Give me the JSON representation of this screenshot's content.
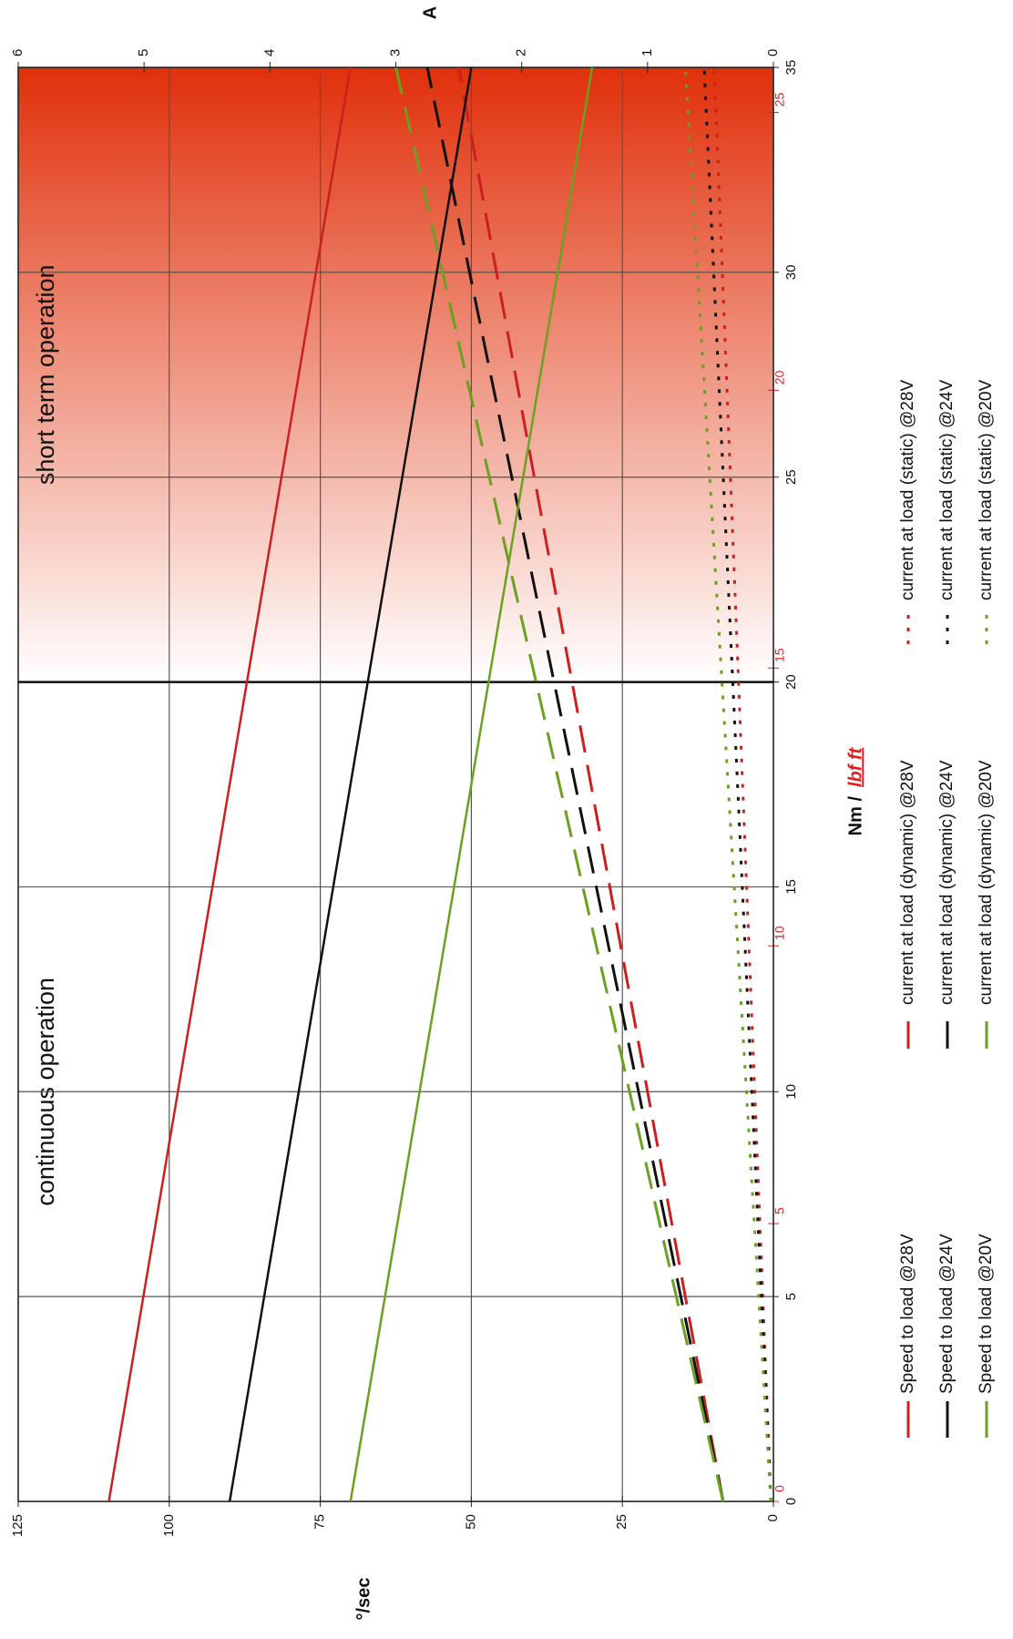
{
  "chart_data": {
    "type": "line",
    "x_label": "Nm /",
    "x2_label": "lbf ft",
    "y_label": "°/sec",
    "y2_label": "A",
    "x": [
      0,
      35
    ],
    "series": [
      {
        "name": "Speed to load @28V",
        "color": "#cc1f1f",
        "style": "solid",
        "values": [
          110,
          70
        ]
      },
      {
        "name": "current at load (dynamic) @28V",
        "color": "#cc1f1f",
        "style": "dashed",
        "axis": "y2",
        "values": [
          0.4,
          2.5
        ]
      },
      {
        "name": "current at load (static) @28V",
        "color": "#cc1f1f",
        "style": "dotted",
        "axis": "y2",
        "values": [
          0.02,
          0.47
        ]
      },
      {
        "name": "Speed to load @24V",
        "color": "#111111",
        "style": "solid",
        "values": [
          90,
          50
        ]
      },
      {
        "name": "current at load (dynamic) @24V",
        "color": "#111111",
        "style": "dashed",
        "axis": "y2",
        "values": [
          0.4,
          2.75
        ]
      },
      {
        "name": "current at load (static) @24V",
        "color": "#111111",
        "style": "dotted",
        "axis": "y2",
        "values": [
          0.02,
          0.55
        ]
      },
      {
        "name": "Speed to load @20V",
        "color": "#6aa121",
        "style": "solid",
        "values": [
          70,
          30
        ]
      },
      {
        "name": "current at load (dynamic) @20V",
        "color": "#6aa121",
        "style": "dashed",
        "axis": "y2",
        "values": [
          0.4,
          3.0
        ]
      },
      {
        "name": "current at load (static) @20V",
        "color": "#6aa121",
        "style": "dotted",
        "axis": "y2",
        "values": [
          0.02,
          0.7
        ]
      }
    ],
    "xlim": [
      0,
      35
    ],
    "xticks": [
      0,
      5,
      10,
      15,
      20,
      25,
      30,
      35
    ],
    "x2lim": [
      0,
      25.81
    ],
    "x2ticks": [
      0,
      5,
      10,
      15,
      20,
      25
    ],
    "ylim": [
      0,
      125
    ],
    "yticks": [
      0,
      25,
      50,
      75,
      100,
      125
    ],
    "y2lim": [
      0,
      6
    ],
    "y2ticks": [
      0,
      1,
      2,
      3,
      4,
      5,
      6
    ],
    "regions": [
      {
        "label": "continuous operation",
        "x": [
          0,
          20
        ]
      },
      {
        "label": "short term operation",
        "x": [
          20,
          35
        ],
        "color": "#e0300a"
      }
    ],
    "grid": true,
    "legend": "bottom"
  }
}
